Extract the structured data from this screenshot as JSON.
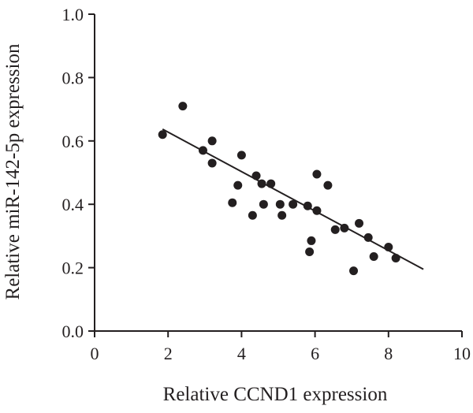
{
  "chart_data": {
    "type": "scatter",
    "title": "",
    "xlabel": "Relative CCND1 expression",
    "ylabel": "Relative miR-142-5p expression",
    "xlim": [
      0,
      10
    ],
    "ylim": [
      0,
      1.0
    ],
    "x_ticks": [
      "0",
      "2",
      "4",
      "6",
      "8",
      "10"
    ],
    "y_ticks": [
      "0.0",
      "0.2",
      "0.4",
      "0.6",
      "0.8",
      "1.0"
    ],
    "grid": false,
    "legend": "none",
    "marker_color": "#231f20",
    "points": [
      {
        "x": 1.85,
        "y": 0.62
      },
      {
        "x": 2.4,
        "y": 0.71
      },
      {
        "x": 2.95,
        "y": 0.57
      },
      {
        "x": 3.2,
        "y": 0.6
      },
      {
        "x": 3.2,
        "y": 0.53
      },
      {
        "x": 3.75,
        "y": 0.405
      },
      {
        "x": 3.9,
        "y": 0.46
      },
      {
        "x": 4.0,
        "y": 0.555
      },
      {
        "x": 4.3,
        "y": 0.365
      },
      {
        "x": 4.4,
        "y": 0.49
      },
      {
        "x": 4.55,
        "y": 0.465
      },
      {
        "x": 4.6,
        "y": 0.4
      },
      {
        "x": 4.8,
        "y": 0.465
      },
      {
        "x": 5.05,
        "y": 0.4
      },
      {
        "x": 5.1,
        "y": 0.365
      },
      {
        "x": 5.4,
        "y": 0.4
      },
      {
        "x": 5.8,
        "y": 0.395
      },
      {
        "x": 5.9,
        "y": 0.285
      },
      {
        "x": 5.85,
        "y": 0.25
      },
      {
        "x": 6.05,
        "y": 0.38
      },
      {
        "x": 6.05,
        "y": 0.495
      },
      {
        "x": 6.35,
        "y": 0.46
      },
      {
        "x": 6.55,
        "y": 0.32
      },
      {
        "x": 6.8,
        "y": 0.325
      },
      {
        "x": 7.05,
        "y": 0.19
      },
      {
        "x": 7.2,
        "y": 0.34
      },
      {
        "x": 7.45,
        "y": 0.295
      },
      {
        "x": 7.6,
        "y": 0.235
      },
      {
        "x": 8.0,
        "y": 0.265
      },
      {
        "x": 8.2,
        "y": 0.23
      }
    ],
    "trendline": {
      "x": [
        1.85,
        8.95
      ],
      "y": [
        0.637,
        0.195
      ]
    }
  }
}
